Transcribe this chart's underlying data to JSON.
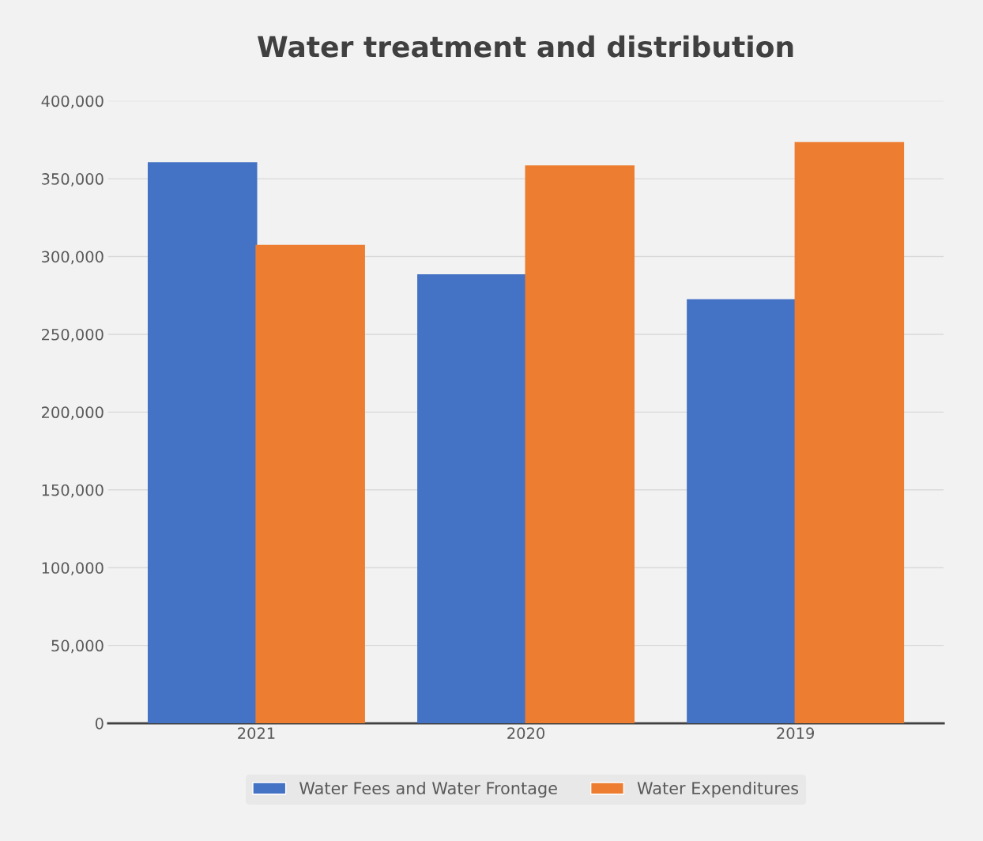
{
  "chart_data": {
    "type": "bar",
    "title": "Water treatment and distribution",
    "categories": [
      "2021",
      "2020",
      "2019"
    ],
    "series": [
      {
        "name": "Water Fees and Water Frontage",
        "color": "#4472c4",
        "values": [
          360000,
          288000,
          272000
        ]
      },
      {
        "name": "Water Expenditures",
        "color": "#ed7d31",
        "values": [
          307000,
          358000,
          373000
        ]
      }
    ],
    "ylim": [
      0,
      400000
    ],
    "yticks": [
      {
        "value": 0,
        "label": "0"
      },
      {
        "value": 50000,
        "label": "50,000"
      },
      {
        "value": 100000,
        "label": "100,000"
      },
      {
        "value": 150000,
        "label": "150,000"
      },
      {
        "value": 200000,
        "label": "200,000"
      },
      {
        "value": 250000,
        "label": "250,000"
      },
      {
        "value": 300000,
        "label": "300,000"
      },
      {
        "value": 350000,
        "label": "350,000"
      },
      {
        "value": 400000,
        "label": "400,000"
      }
    ],
    "grid": "y",
    "legend": "bottom"
  }
}
